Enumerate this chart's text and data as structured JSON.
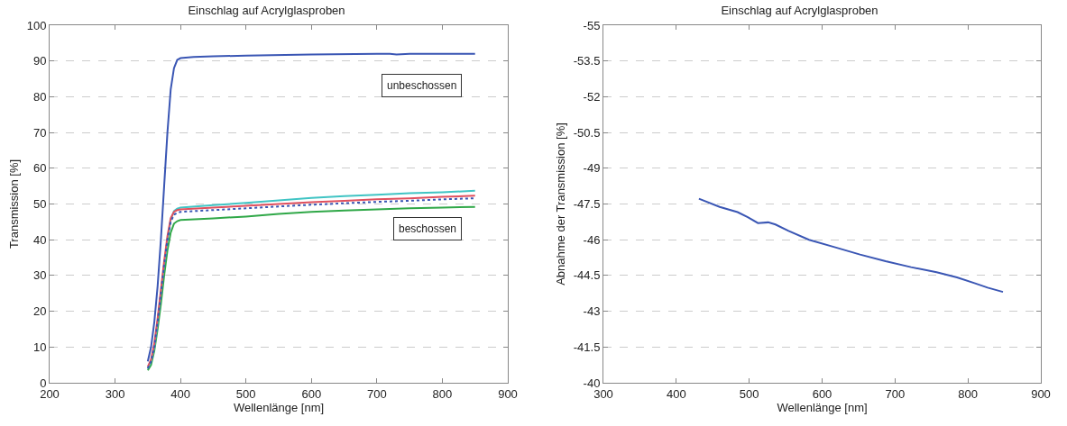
{
  "chart_data": [
    {
      "type": "line",
      "title": "Einschlag auf Acrylglasproben",
      "xlabel": "Wellenlänge [nm]",
      "ylabel": "Transmission [%]",
      "xlim": [
        200,
        900
      ],
      "xticks": [
        200,
        300,
        400,
        500,
        600,
        700,
        800,
        900
      ],
      "ylim": [
        0,
        100
      ],
      "yticks": [
        0,
        10,
        20,
        30,
        40,
        50,
        60,
        70,
        80,
        90,
        100
      ],
      "grid": "y",
      "marker": "none",
      "annotations": [
        "unbeschossen",
        "beschossen"
      ],
      "series": [
        {
          "color": "#3a56b4",
          "line_style": "solid",
          "x": [
            350,
            355,
            360,
            365,
            370,
            375,
            380,
            385,
            390,
            395,
            400,
            420,
            450,
            500,
            600,
            700,
            720,
            730,
            750,
            800,
            850
          ],
          "values": [
            6,
            10,
            17,
            27,
            40,
            55,
            70,
            82,
            88,
            90.3,
            90.8,
            91.1,
            91.3,
            91.5,
            91.8,
            92,
            92,
            91.8,
            92,
            92,
            92
          ]
        },
        {
          "color": "#30a848",
          "line_style": "solid",
          "x": [
            350,
            355,
            360,
            365,
            370,
            375,
            380,
            385,
            390,
            395,
            400,
            450,
            500,
            550,
            600,
            650,
            700,
            750,
            800,
            850
          ],
          "values": [
            3.5,
            5,
            9,
            15,
            22,
            30,
            37,
            42,
            44.5,
            45.2,
            45.5,
            46,
            46.5,
            47.2,
            47.8,
            48.2,
            48.5,
            48.8,
            49,
            49.2
          ]
        },
        {
          "color": "#40c4c4",
          "line_style": "solid",
          "x": [
            350,
            355,
            360,
            365,
            370,
            375,
            380,
            385,
            390,
            395,
            400,
            450,
            500,
            550,
            600,
            650,
            700,
            750,
            800,
            850
          ],
          "values": [
            4,
            6,
            10,
            17,
            25,
            33,
            40,
            45.5,
            48,
            48.7,
            49,
            49.7,
            50.3,
            51,
            51.7,
            52.2,
            52.6,
            53,
            53.3,
            53.7
          ]
        },
        {
          "color": "#e0505e",
          "line_style": "solid",
          "x": [
            350,
            355,
            360,
            365,
            370,
            375,
            380,
            385,
            390,
            395,
            400,
            450,
            500,
            550,
            600,
            650,
            700,
            750,
            800,
            850
          ],
          "values": [
            4.5,
            6.5,
            11,
            18,
            26,
            34,
            41,
            46,
            47.8,
            48.3,
            48.5,
            49,
            49.5,
            50,
            50.5,
            50.9,
            51.3,
            51.6,
            52,
            52.3
          ]
        },
        {
          "color": "#3a56b4",
          "line_style": "dotted",
          "x": [
            350,
            355,
            360,
            365,
            370,
            375,
            380,
            385,
            390,
            395,
            400,
            450,
            500,
            550,
            600,
            650,
            700,
            750,
            800,
            850
          ],
          "values": [
            4,
            6,
            10,
            17,
            25,
            33,
            40,
            45,
            47,
            47.5,
            47.8,
            48.3,
            48.8,
            49.3,
            49.8,
            50.2,
            50.6,
            50.9,
            51.3,
            51.6
          ]
        }
      ]
    },
    {
      "type": "line",
      "title": "Einschlag auf Acrylglasproben",
      "xlabel": "Wellenlänge [nm]",
      "ylabel": "Abnahme der Transmission [%]",
      "xlim": [
        300,
        900
      ],
      "xticks": [
        300,
        400,
        500,
        600,
        700,
        800,
        900
      ],
      "ylim": [
        -40,
        -55
      ],
      "yticks": [
        -55,
        -53.5,
        -52,
        -50.5,
        -49,
        -47.5,
        -46,
        -44.5,
        -43,
        -41.5,
        -40
      ],
      "grid": "y",
      "marker": "none",
      "series": [
        {
          "color": "#3a56b4",
          "line_style": "solid",
          "x": [
            431,
            459.5,
            484,
            498,
            512,
            526,
            536,
            554,
            582,
            617,
            652,
            687,
            722,
            757,
            785,
            809,
            827,
            848
          ],
          "values": [
            -47.72,
            -47.38,
            -47.16,
            -46.95,
            -46.7,
            -46.73,
            -46.64,
            -46.37,
            -46,
            -45.69,
            -45.38,
            -45.1,
            -44.85,
            -44.64,
            -44.42,
            -44.18,
            -43.99,
            -43.81
          ]
        }
      ]
    }
  ]
}
